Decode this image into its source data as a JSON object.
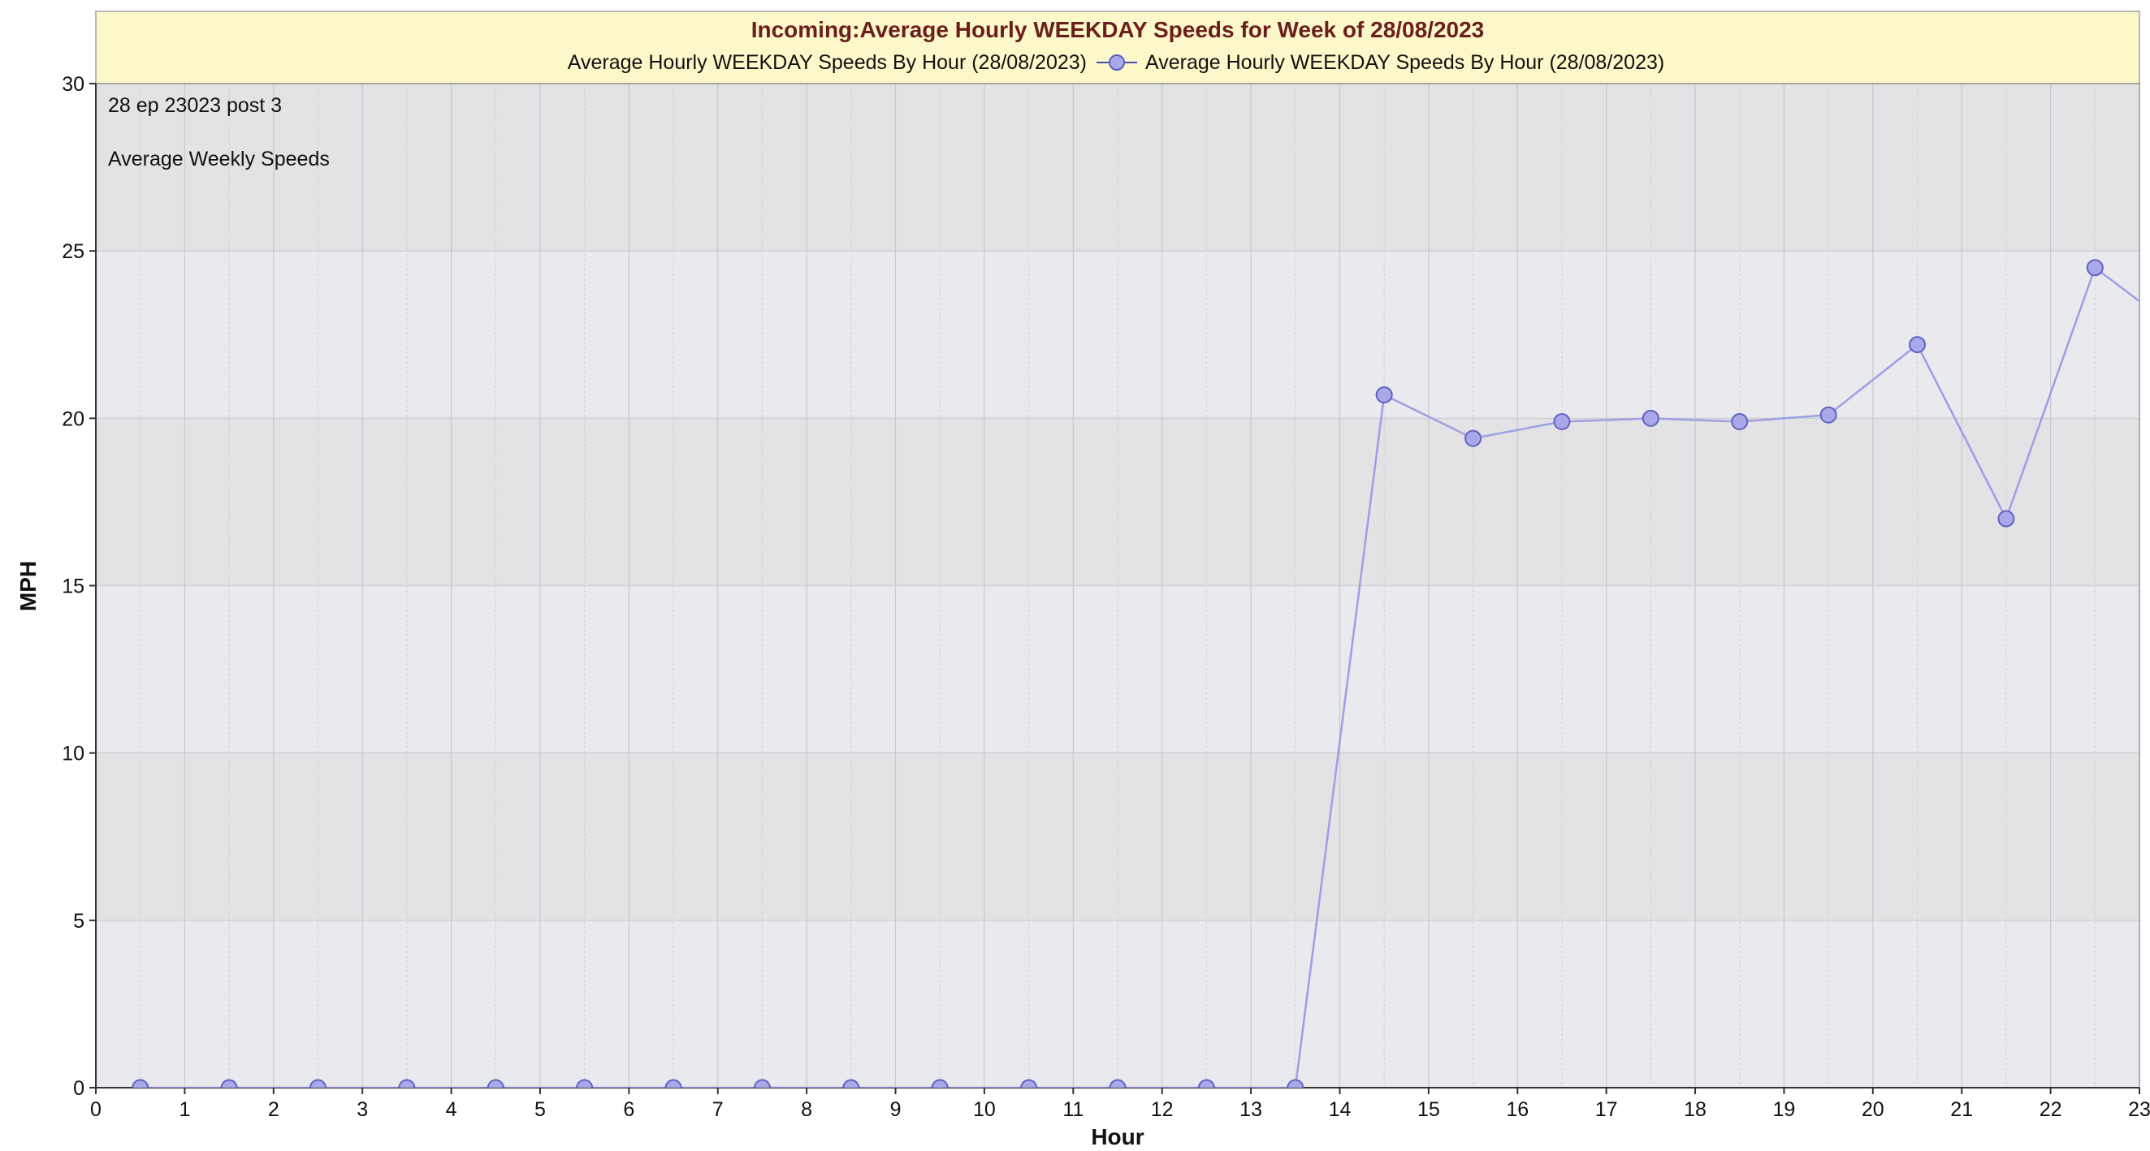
{
  "chart_data": {
    "type": "line",
    "title": "Incoming:Average Hourly WEEKDAY Speeds for Week of 28/08/2023",
    "legend": {
      "placement": "top",
      "label_left": "Average Hourly WEEKDAY Speeds By Hour (28/08/2023)",
      "label_right": "Average Hourly WEEKDAY Speeds By Hour (28/08/2023)"
    },
    "annotations": [
      "28 ep 23023 post 3",
      "Average Weekly Speeds"
    ],
    "xlabel": "Hour",
    "ylabel": "MPH",
    "xlim": [
      0,
      23
    ],
    "ylim": [
      0,
      30
    ],
    "xticks": [
      0,
      1,
      2,
      3,
      4,
      5,
      6,
      7,
      8,
      9,
      10,
      11,
      12,
      13,
      14,
      15,
      16,
      17,
      18,
      19,
      20,
      21,
      22,
      23
    ],
    "yticks": [
      0,
      5,
      10,
      15,
      20,
      25,
      30
    ],
    "grid": true,
    "series": [
      {
        "color": "#9d9ee6",
        "x": [
          0.5,
          1.5,
          2.5,
          3.5,
          4.5,
          5.5,
          6.5,
          7.5,
          8.5,
          9.5,
          10.5,
          11.5,
          12.5,
          13.5,
          14.5,
          15.5,
          16.5,
          17.5,
          18.5,
          19.5,
          20.5,
          21.5,
          22.5,
          23.5
        ],
        "values": [
          0,
          0,
          0,
          0,
          0,
          0,
          0,
          0,
          0,
          0,
          0,
          0,
          0,
          0,
          20.7,
          19.4,
          19.9,
          20.0,
          19.9,
          20.1,
          22.2,
          17.0,
          24.5,
          22.5
        ]
      }
    ]
  }
}
